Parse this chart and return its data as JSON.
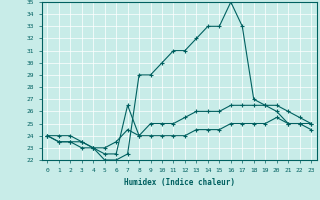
{
  "xlabel": "Humidex (Indice chaleur)",
  "ylabel": "",
  "bg_color": "#c8ece8",
  "line_color": "#006060",
  "xmin": 0,
  "xmax": 23,
  "ymin": 22,
  "ymax": 35,
  "hours": [
    0,
    1,
    2,
    3,
    4,
    5,
    6,
    7,
    8,
    9,
    10,
    11,
    12,
    13,
    14,
    15,
    16,
    17,
    18,
    19,
    20,
    21,
    22,
    23
  ],
  "line1": [
    24,
    23.5,
    23.5,
    23,
    23,
    22,
    22,
    22.5,
    29,
    29,
    30,
    31,
    31,
    32,
    33,
    33,
    35,
    33,
    27,
    26.5,
    26,
    25,
    25,
    24.5
  ],
  "line2": [
    24,
    23.5,
    23.5,
    23.5,
    23,
    22.5,
    22.5,
    26.5,
    24,
    25,
    25,
    25,
    25.5,
    26,
    26,
    26,
    26.5,
    26.5,
    26.5,
    26.5,
    26.5,
    26,
    25.5,
    25
  ],
  "line3": [
    24,
    24,
    24,
    23.5,
    23,
    23,
    23.5,
    24.5,
    24,
    24,
    24,
    24,
    24,
    24.5,
    24.5,
    24.5,
    25,
    25,
    25,
    25,
    25.5,
    25,
    25,
    25
  ]
}
